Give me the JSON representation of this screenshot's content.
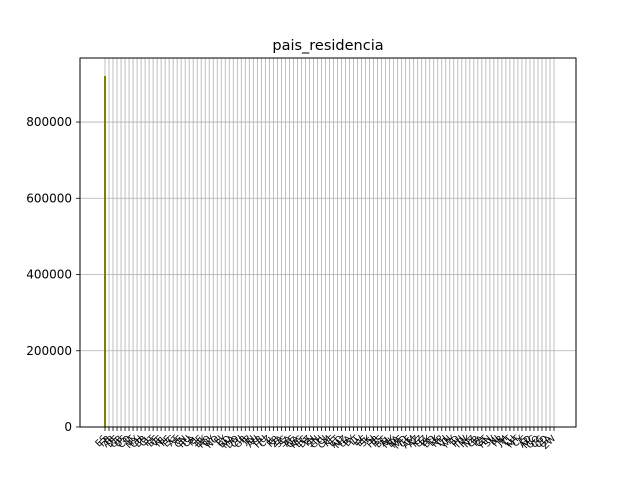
{
  "chart_data": {
    "type": "bar",
    "title": "pais_residencia",
    "xlabel": "",
    "ylabel": "",
    "ylim": [
      0,
      968000
    ],
    "yticks": [
      0,
      200000,
      400000,
      600000,
      800000
    ],
    "ytick_labels": [
      "0",
      "200000",
      "400000",
      "600000",
      "800000"
    ],
    "grid": true,
    "bar_color": "#808000",
    "grid_color": "#b0b0b0",
    "categories": [
      "ES",
      "FR",
      "AR",
      "DE",
      "GB",
      "US",
      "CO",
      "IT",
      "MX",
      "CH",
      "BR",
      "CL",
      "PT",
      "BE",
      "VE",
      "NL",
      "PE",
      "EC",
      "AT",
      "IE",
      "CN",
      "RU",
      "CA",
      "PL",
      "SE",
      "DK",
      "RO",
      "UY",
      "NO",
      "FI",
      "PY",
      "BO",
      "MA",
      "DO",
      "CU",
      "GR",
      "JP",
      "IN",
      "AU",
      "TR",
      "HU",
      "CZ",
      "IL",
      "KR",
      "ZA",
      "SG",
      "SA",
      "AE",
      "QA",
      "NG",
      "EG",
      "DZ",
      "TN",
      "SN",
      "GH",
      "CI",
      "CM",
      "KE",
      "ET",
      "AO",
      "MZ",
      "UA",
      "BY",
      "LT",
      "LV",
      "EE",
      "SK",
      "SI",
      "HR",
      "RS",
      "BG",
      "AL",
      "MK",
      "BA",
      "ME",
      "MD",
      "GE",
      "AM",
      "AZ",
      "KZ",
      "UZ",
      "PK",
      "BD",
      "LK",
      "NP",
      "TH",
      "VN",
      "MY",
      "ID",
      "PH",
      "TW",
      "HK",
      "NZ",
      "CR",
      "PA",
      "GT",
      "HN",
      "SV",
      "NI",
      "PR",
      "JM",
      "TT",
      "LU",
      "MT",
      "CY",
      "IS",
      "AD",
      "MC",
      "GQ",
      "CG",
      "CD",
      "GA",
      "ZW"
    ],
    "values": [
      921000,
      1600,
      1300,
      1100,
      900,
      700,
      600,
      500,
      450,
      400,
      380,
      350,
      320,
      300,
      280,
      260,
      240,
      220,
      200,
      190,
      180,
      170,
      160,
      150,
      140,
      130,
      120,
      110,
      100,
      95,
      90,
      85,
      80,
      75,
      70,
      65,
      60,
      55,
      50,
      48,
      46,
      44,
      42,
      40,
      38,
      36,
      34,
      32,
      30,
      28,
      26,
      24,
      22,
      20,
      19,
      18,
      17,
      16,
      15,
      14,
      13,
      12,
      11,
      10,
      10,
      9,
      9,
      8,
      8,
      7,
      7,
      6,
      6,
      5,
      5,
      5,
      4,
      4,
      4,
      3,
      3,
      3,
      3,
      2,
      2,
      2,
      2,
      2,
      2,
      1,
      1,
      1,
      1,
      1,
      1,
      1,
      1,
      1,
      1,
      1,
      1,
      1,
      1,
      1,
      1,
      1,
      1,
      1,
      1,
      1,
      1,
      1,
      1
    ]
  }
}
